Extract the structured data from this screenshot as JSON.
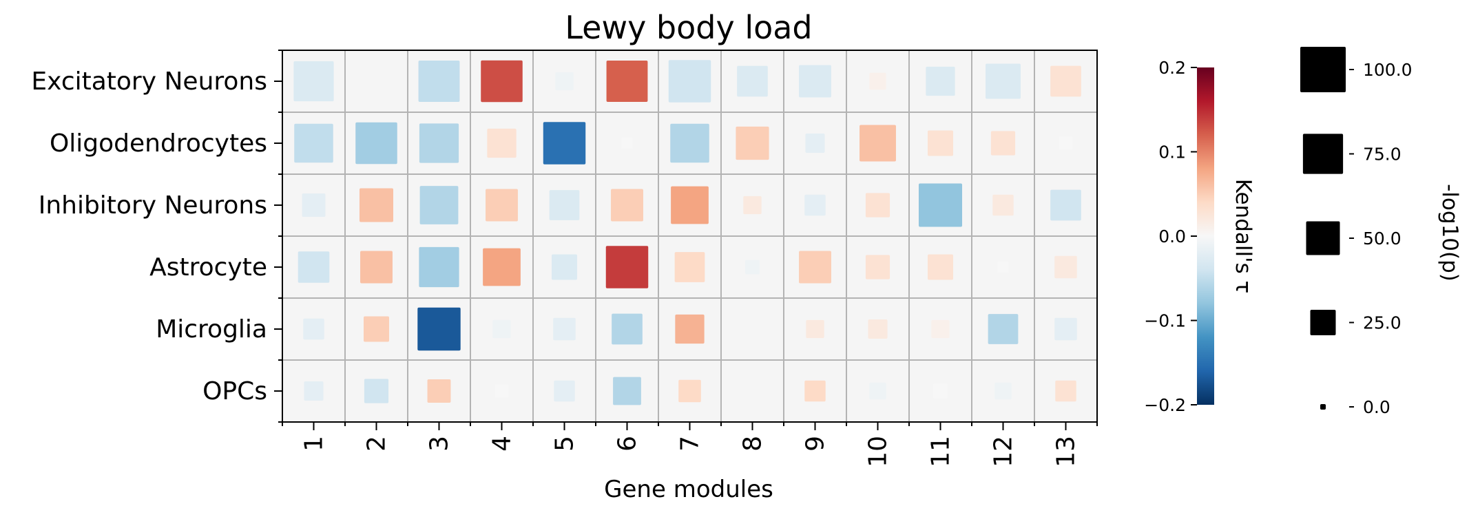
{
  "chart_data": {
    "type": "heatmap",
    "title": "Lewy body load",
    "xlabel": "Gene modules",
    "ylabel": "",
    "categories": [
      "1",
      "2",
      "3",
      "4",
      "5",
      "6",
      "7",
      "8",
      "9",
      "10",
      "11",
      "12",
      "13"
    ],
    "rows": [
      "Excitatory Neurons",
      "Oligodendrocytes",
      "Inhibitory Neurons",
      "Astrocyte",
      "Microglia",
      "OPCs"
    ],
    "tau": [
      [
        -0.03,
        0.0,
        -0.05,
        0.13,
        -0.01,
        0.12,
        -0.04,
        -0.03,
        -0.03,
        0.01,
        -0.03,
        -0.03,
        0.03
      ],
      [
        -0.05,
        -0.07,
        -0.06,
        0.03,
        -0.15,
        0.0,
        -0.06,
        0.05,
        -0.02,
        0.06,
        0.03,
        0.03,
        0.0
      ],
      [
        -0.02,
        0.06,
        -0.06,
        0.05,
        -0.03,
        0.05,
        0.08,
        0.02,
        -0.02,
        0.03,
        -0.08,
        0.02,
        -0.04
      ],
      [
        -0.04,
        0.06,
        -0.07,
        0.08,
        -0.03,
        0.14,
        0.04,
        -0.01,
        0.05,
        0.03,
        0.03,
        0.0,
        0.02
      ],
      [
        -0.02,
        0.05,
        -0.17,
        -0.01,
        -0.02,
        -0.06,
        0.07,
        0.0,
        0.02,
        0.02,
        0.01,
        -0.06,
        -0.02
      ],
      [
        -0.02,
        -0.04,
        0.05,
        0.0,
        -0.02,
        -0.06,
        0.04,
        0.0,
        0.04,
        -0.01,
        0.0,
        -0.01,
        0.03
      ]
    ],
    "neglog10p": [
      [
        75,
        0,
        80,
        82,
        10,
        80,
        85,
        40,
        45,
        8,
        35,
        55,
        40
      ],
      [
        70,
        82,
        72,
        35,
        85,
        2,
        70,
        48,
        12,
        60,
        25,
        22,
        4
      ],
      [
        20,
        50,
        68,
        45,
        38,
        45,
        65,
        10,
        15,
        22,
        90,
        15,
        40
      ],
      [
        42,
        45,
        75,
        65,
        25,
        85,
        38,
        5,
        45,
        22,
        25,
        2,
        18
      ],
      [
        15,
        25,
        88,
        10,
        18,
        40,
        35,
        0,
        10,
        12,
        10,
        38,
        18
      ],
      [
        12,
        22,
        20,
        4,
        15,
        32,
        18,
        0,
        15,
        8,
        5,
        8,
        15
      ]
    ],
    "colorbar": {
      "label": "Kendall's τ",
      "range": [
        -0.2,
        0.2
      ],
      "ticks": [
        "0.2",
        "0.1",
        "0.0",
        "−0.1",
        "−0.2"
      ],
      "colormap": "RdBu_r"
    },
    "size_legend": {
      "label": "-log10(p)",
      "values": [
        100.0,
        75.0,
        50.0,
        25.0,
        0.0
      ],
      "tick_labels": [
        "100.0",
        "75.0",
        "50.0",
        "25.0",
        "0.0"
      ]
    },
    "grid": true
  }
}
